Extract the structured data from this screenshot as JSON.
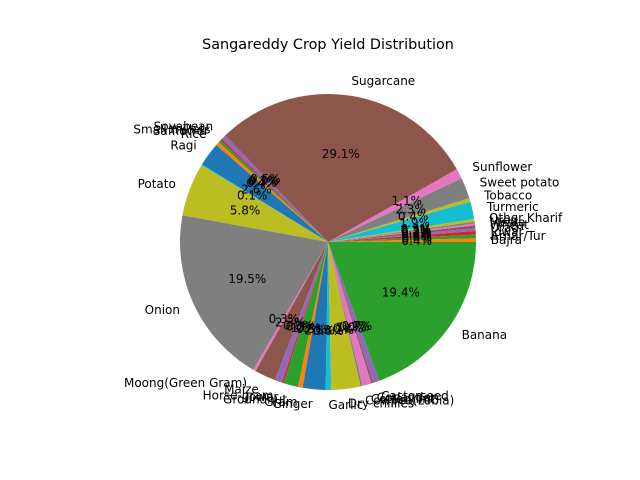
{
  "chart_data": {
    "type": "pie",
    "title": "Sangareddy Crop Yield Distribution",
    "start_angle_deg": 0,
    "direction": "counterclockwise",
    "slices": [
      {
        "label": "Bajra",
        "value": 0.4,
        "pct_label": "0.4%",
        "color": "#ff7f0e"
      },
      {
        "label": "Arhar/Tur",
        "value": 0.4,
        "pct_label": "0.4%",
        "color": "#2ca02c"
      },
      {
        "label": "Jowar",
        "value": 0.4,
        "pct_label": "0.4%",
        "color": "#d62728"
      },
      {
        "label": "Urad",
        "value": 0.3,
        "pct_label": "0.3%",
        "color": "#9467bd"
      },
      {
        "label": "Wheat",
        "value": 0.3,
        "pct_label": "0.3%",
        "color": "#8c564b"
      },
      {
        "label": "Mesta",
        "value": 0.2,
        "pct_label": "0.2%",
        "color": "#e377c2"
      },
      {
        "label": "Urad",
        "value": 0.2,
        "pct_label": "0.2%",
        "color": "#7f7f7f"
      },
      {
        "label": "Other Kharif",
        "value": 0.3,
        "pct_label": "0.3%",
        "color": "#bcbd22"
      },
      {
        "label": "Turmeric",
        "value": 1.9,
        "pct_label": "1.9%",
        "color": "#17becf"
      },
      {
        "label": "Tobacco",
        "value": 0.4,
        "pct_label": "0.4%",
        "color": "#bcbd22"
      },
      {
        "label": "Sweet potato",
        "value": 2.3,
        "pct_label": "2.3%",
        "color": "#7f7f7f"
      },
      {
        "label": "Sunflower",
        "value": 1.1,
        "pct_label": "1.1%",
        "color": "#e377c2"
      },
      {
        "label": "Sugarcane",
        "value": 29.1,
        "pct_label": "29.1%",
        "color": "#8c564b"
      },
      {
        "label": "Soyabean",
        "value": 0.5,
        "pct_label": "0.5%",
        "color": "#9467bd"
      },
      {
        "label": "Small millets",
        "value": 0.2,
        "pct_label": "0.2%",
        "color": "#d62728"
      },
      {
        "label": "Safflower",
        "value": 0.3,
        "pct_label": "0.3%",
        "color": "#2ca02c"
      },
      {
        "label": "Rice",
        "value": 0.4,
        "pct_label": "0.4%",
        "color": "#ff7f0e"
      },
      {
        "label": "Ragi",
        "value": 2.6,
        "pct_label": "2.6%",
        "color": "#1f77b4"
      },
      {
        "label": "",
        "value": 0.1,
        "pct_label": "0.1%",
        "color": "#17becf"
      },
      {
        "label": "Potato",
        "value": 5.8,
        "pct_label": "5.8%",
        "color": "#bcbd22"
      },
      {
        "label": "Onion",
        "value": 19.5,
        "pct_label": "19.5%",
        "color": "#7f7f7f"
      },
      {
        "label": "Moong(Green Gram)",
        "value": 0.3,
        "pct_label": "0.3%",
        "color": "#e377c2"
      },
      {
        "label": "Maize",
        "value": 2.3,
        "pct_label": "2.3%",
        "color": "#8c564b"
      },
      {
        "label": "Horse-gram",
        "value": 0.8,
        "pct_label": "0.8%",
        "color": "#9467bd"
      },
      {
        "label": "Jowar",
        "value": 0.2,
        "pct_label": "0.2%",
        "color": "#d62728"
      },
      {
        "label": "Groundnut",
        "value": 1.6,
        "pct_label": "1.6%",
        "color": "#2ca02c"
      },
      {
        "label": "Gram",
        "value": 0.5,
        "pct_label": "0.5%",
        "color": "#ff7f0e"
      },
      {
        "label": "Ginger",
        "value": 2.5,
        "pct_label": "2.5%",
        "color": "#1f77b4"
      },
      {
        "label": "Garlic",
        "value": 0.6,
        "pct_label": "0.6%",
        "color": "#17becf"
      },
      {
        "label": "Dry chillies",
        "value": 3.2,
        "pct_label": "3.2%",
        "color": "#bcbd22"
      },
      {
        "label": "Cowpea(Lobia)",
        "value": 0.2,
        "pct_label": "0.2%",
        "color": "#7f7f7f"
      },
      {
        "label": "Cotton(lint)",
        "value": 1.0,
        "pct_label": "1.0%",
        "color": "#e377c2"
      },
      {
        "label": "Coriander",
        "value": 0.2,
        "pct_label": "0.2%",
        "color": "#8c564b"
      },
      {
        "label": "Castorseed",
        "value": 0.7,
        "pct_label": "0.7%",
        "color": "#9467bd"
      },
      {
        "label": "Banana",
        "value": 19.4,
        "pct_label": "19.4%",
        "color": "#2ca02c"
      }
    ]
  }
}
